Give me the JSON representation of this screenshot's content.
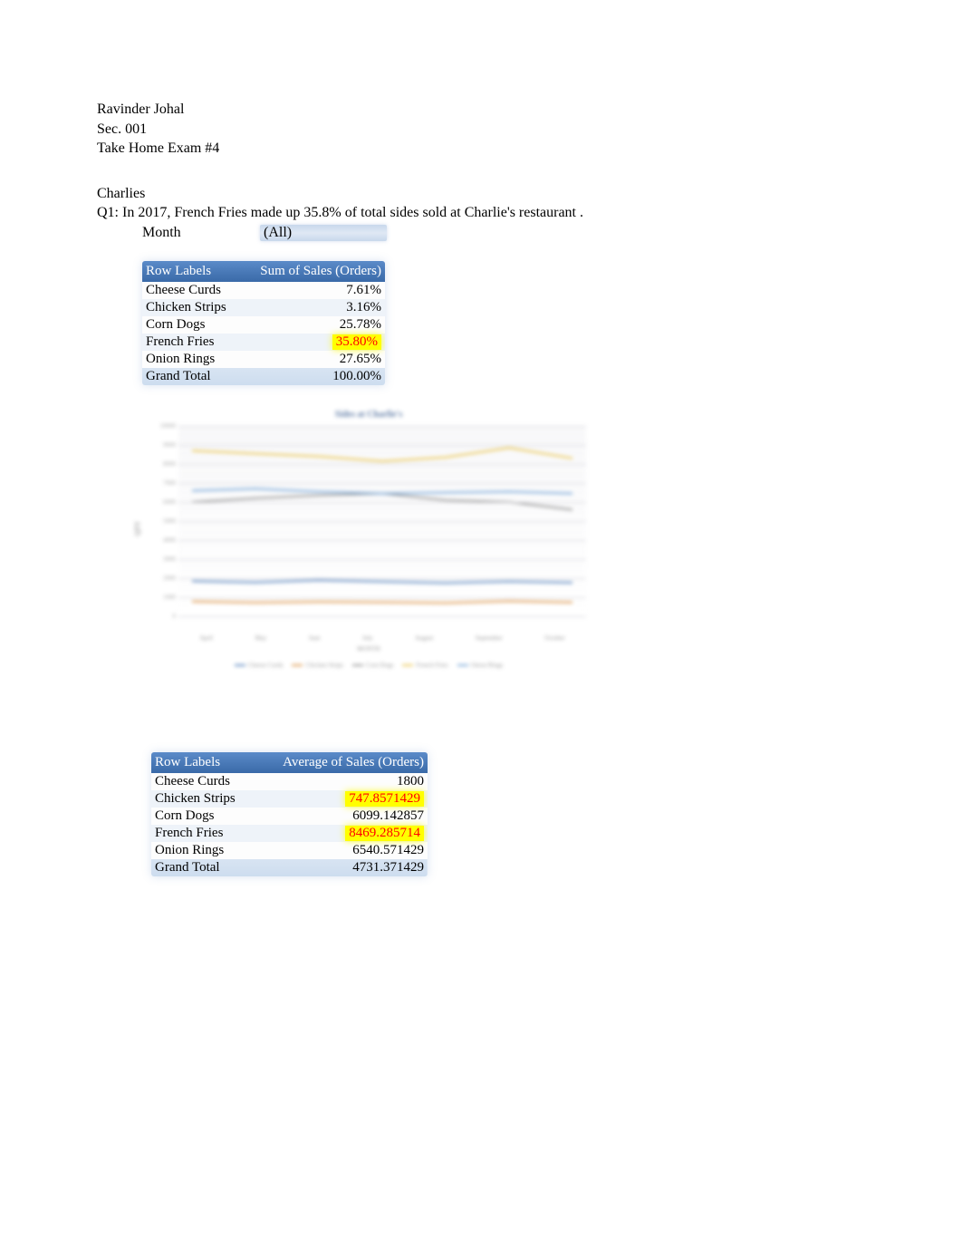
{
  "header": {
    "name": "Ravinder Johal",
    "section": "Sec. 001",
    "exam": "Take Home Exam #4"
  },
  "section_title": "Charlies",
  "question1": "Q1: In 2017, French Fries made up 35.8% of total sides sold at Charlie's restaurant .",
  "filter": {
    "label": "Month",
    "value": "(All)"
  },
  "pivot1": {
    "columns": [
      "Row Labels",
      "Sum of Sales (Orders)"
    ],
    "rows": [
      {
        "label": "Cheese Curds",
        "value": "7.61%",
        "highlighted": false
      },
      {
        "label": "Chicken Strips",
        "value": "3.16%",
        "highlighted": false
      },
      {
        "label": "Corn Dogs",
        "value": "25.78%",
        "highlighted": false
      },
      {
        "label": "French Fries",
        "value": "35.80%",
        "highlighted": true
      },
      {
        "label": "Onion Rings",
        "value": "27.65%",
        "highlighted": false
      }
    ],
    "grand_total": {
      "label": "Grand Total",
      "value": "100.00%"
    }
  },
  "chart": {
    "title": "Sides at Charlie's",
    "yaxis_label": "QTY",
    "xaxis_label": "MONTH",
    "yticks": [
      "10000",
      "9000",
      "8000",
      "7000",
      "6000",
      "5000",
      "4000",
      "3000",
      "2000",
      "1000",
      "0"
    ],
    "ylim": [
      0,
      10000
    ],
    "xtick_labels": [
      "April",
      "May",
      "June",
      "July",
      "August",
      "September",
      "October"
    ],
    "series": [
      {
        "name": "Cheese Curds",
        "color": "#4a7ab8",
        "values": [
          1850,
          1780,
          1900,
          1820,
          1750,
          1830,
          1770
        ]
      },
      {
        "name": "Chicken Strips",
        "color": "#d98c3a",
        "values": [
          780,
          720,
          760,
          740,
          700,
          800,
          730
        ]
      },
      {
        "name": "Corn Dogs",
        "color": "#8a8a8a",
        "values": [
          6000,
          6200,
          6350,
          6450,
          6100,
          6000,
          5600
        ]
      },
      {
        "name": "French Fries",
        "color": "#e8c040",
        "values": [
          8700,
          8550,
          8400,
          8150,
          8350,
          8850,
          8300
        ]
      },
      {
        "name": "Onion Rings",
        "color": "#6a9ed4",
        "values": [
          6600,
          6700,
          6550,
          6450,
          6500,
          6550,
          6450
        ]
      }
    ],
    "line_width": 2,
    "grid_color": "#d0d0d8",
    "background_color": "#ffffff",
    "title_color": "#4a6a9a",
    "title_fontsize": 10,
    "label_fontsize": 7
  },
  "pivot2": {
    "columns": [
      "Row Labels",
      "Average of Sales (Orders)"
    ],
    "rows": [
      {
        "label": "Cheese Curds",
        "value": "1800",
        "highlighted": false
      },
      {
        "label": "Chicken Strips",
        "value": "747.8571429",
        "highlighted": true
      },
      {
        "label": "Corn Dogs",
        "value": "6099.142857",
        "highlighted": false
      },
      {
        "label": "French Fries",
        "value": "8469.285714",
        "highlighted": true
      },
      {
        "label": "Onion Rings",
        "value": "6540.571429",
        "highlighted": false
      }
    ],
    "grand_total": {
      "label": "Grand Total",
      "value": "4731.371429"
    }
  }
}
